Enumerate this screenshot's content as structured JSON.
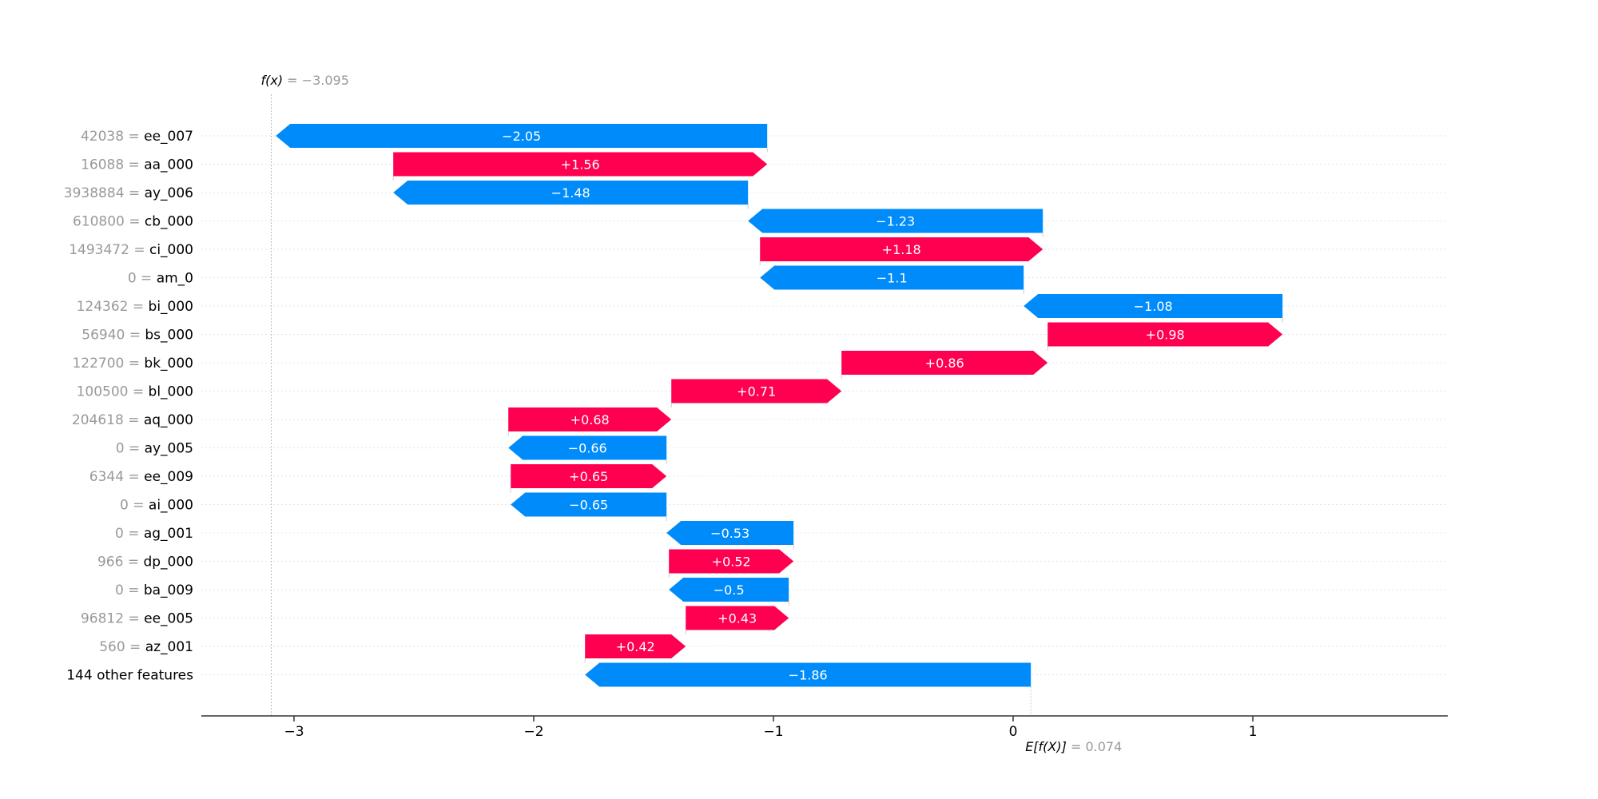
{
  "chart_data": {
    "type": "waterfall",
    "title": "",
    "xlabel": "",
    "ylabel": "",
    "xlim": [
      -3.4,
      1.8
    ],
    "xticks": [
      -3,
      -2,
      -1,
      0,
      1
    ],
    "xtick_labels": [
      "−3",
      "−2",
      "−1",
      "0",
      "1"
    ],
    "fx": {
      "label": "f(x)",
      "value_text": "−3.095",
      "value": -3.095
    },
    "base": {
      "label": "E[f(X)]",
      "value_text": "0.074",
      "value": 0.074
    },
    "rows": [
      {
        "value_text": "42038",
        "feature": "ee_007",
        "shap": -2.05,
        "shap_text": "−2.05"
      },
      {
        "value_text": "16088",
        "feature": "aa_000",
        "shap": 1.56,
        "shap_text": "+1.56"
      },
      {
        "value_text": "3938884",
        "feature": "ay_006",
        "shap": -1.48,
        "shap_text": "−1.48"
      },
      {
        "value_text": "610800",
        "feature": "cb_000",
        "shap": -1.23,
        "shap_text": "−1.23"
      },
      {
        "value_text": "1493472",
        "feature": "ci_000",
        "shap": 1.18,
        "shap_text": "+1.18"
      },
      {
        "value_text": "0",
        "feature": "am_0",
        "shap": -1.1,
        "shap_text": "−1.1"
      },
      {
        "value_text": "124362",
        "feature": "bi_000",
        "shap": -1.08,
        "shap_text": "−1.08"
      },
      {
        "value_text": "56940",
        "feature": "bs_000",
        "shap": 0.98,
        "shap_text": "+0.98"
      },
      {
        "value_text": "122700",
        "feature": "bk_000",
        "shap": 0.86,
        "shap_text": "+0.86"
      },
      {
        "value_text": "100500",
        "feature": "bl_000",
        "shap": 0.71,
        "shap_text": "+0.71"
      },
      {
        "value_text": "204618",
        "feature": "aq_000",
        "shap": 0.68,
        "shap_text": "+0.68"
      },
      {
        "value_text": "0",
        "feature": "ay_005",
        "shap": -0.66,
        "shap_text": "−0.66"
      },
      {
        "value_text": "6344",
        "feature": "ee_009",
        "shap": 0.65,
        "shap_text": "+0.65"
      },
      {
        "value_text": "0",
        "feature": "ai_000",
        "shap": -0.65,
        "shap_text": "−0.65"
      },
      {
        "value_text": "0",
        "feature": "ag_001",
        "shap": -0.53,
        "shap_text": "−0.53"
      },
      {
        "value_text": "966",
        "feature": "dp_000",
        "shap": 0.52,
        "shap_text": "+0.52"
      },
      {
        "value_text": "0",
        "feature": "ba_009",
        "shap": -0.5,
        "shap_text": "−0.5"
      },
      {
        "value_text": "96812",
        "feature": "ee_005",
        "shap": 0.43,
        "shap_text": "+0.43"
      },
      {
        "value_text": "560",
        "feature": "az_001",
        "shap": 0.42,
        "shap_text": "+0.42"
      },
      {
        "value_text": "",
        "feature": "144 other features",
        "shap": -1.86,
        "shap_text": "−1.86"
      }
    ],
    "colors": {
      "positive": "#ff0051",
      "negative": "#008bfb",
      "value_gray": "#999999",
      "gridline": "#e5e5e5",
      "axis": "#333333"
    }
  }
}
